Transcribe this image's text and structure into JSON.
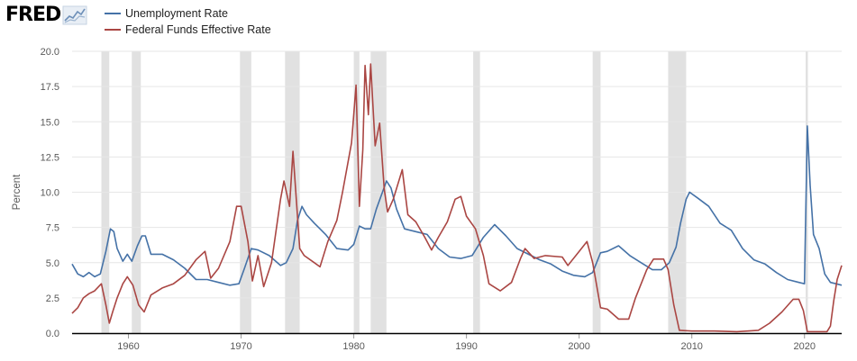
{
  "brand": {
    "logo_text": "FRED",
    "logo_icon": "chart-line-icon"
  },
  "chart_data": {
    "type": "line",
    "title": "",
    "xlabel": "",
    "ylabel": "Percent",
    "xlim": [
      1955,
      2023.3
    ],
    "ylim": [
      0,
      20
    ],
    "yticks": [
      0.0,
      2.5,
      5.0,
      7.5,
      10.0,
      12.5,
      15.0,
      17.5,
      20.0
    ],
    "ytick_labels": [
      "0.0",
      "2.5",
      "5.0",
      "7.5",
      "10.0",
      "12.5",
      "15.0",
      "17.5",
      "20.0"
    ],
    "xticks": [
      1960,
      1970,
      1980,
      1990,
      2000,
      2010,
      2020
    ],
    "xtick_labels": [
      "1960",
      "1970",
      "1980",
      "1990",
      "2000",
      "2010",
      "2020"
    ],
    "grid": {
      "horizontal": true,
      "vertical": false
    },
    "legend_position": "top-left",
    "recessions": [
      [
        1957.6,
        1958.3
      ],
      [
        1960.3,
        1961.1
      ],
      [
        1969.9,
        1970.9
      ],
      [
        1973.9,
        1975.2
      ],
      [
        1980.0,
        1980.5
      ],
      [
        1981.5,
        1982.9
      ],
      [
        1990.6,
        1991.2
      ],
      [
        2001.2,
        2001.9
      ],
      [
        2007.9,
        2009.5
      ],
      [
        2020.1,
        2020.3
      ]
    ],
    "series": [
      {
        "name": "Unemployment Rate",
        "color": "#4572a7",
        "points": [
          [
            1955.0,
            4.9
          ],
          [
            1955.5,
            4.2
          ],
          [
            1956.0,
            4.0
          ],
          [
            1956.5,
            4.3
          ],
          [
            1957.0,
            4.0
          ],
          [
            1957.5,
            4.2
          ],
          [
            1958.0,
            5.8
          ],
          [
            1958.4,
            7.4
          ],
          [
            1958.7,
            7.2
          ],
          [
            1959.0,
            6.0
          ],
          [
            1959.5,
            5.1
          ],
          [
            1959.9,
            5.6
          ],
          [
            1960.3,
            5.1
          ],
          [
            1960.8,
            6.2
          ],
          [
            1961.2,
            6.9
          ],
          [
            1961.5,
            6.9
          ],
          [
            1962.0,
            5.6
          ],
          [
            1963.0,
            5.6
          ],
          [
            1964.0,
            5.2
          ],
          [
            1965.0,
            4.6
          ],
          [
            1966.0,
            3.8
          ],
          [
            1967.0,
            3.8
          ],
          [
            1968.0,
            3.6
          ],
          [
            1969.0,
            3.4
          ],
          [
            1969.8,
            3.5
          ],
          [
            1970.3,
            4.6
          ],
          [
            1970.9,
            6.0
          ],
          [
            1971.5,
            5.9
          ],
          [
            1972.5,
            5.5
          ],
          [
            1973.5,
            4.8
          ],
          [
            1974.0,
            5.0
          ],
          [
            1974.6,
            6.0
          ],
          [
            1975.0,
            8.0
          ],
          [
            1975.4,
            9.0
          ],
          [
            1975.8,
            8.4
          ],
          [
            1976.5,
            7.8
          ],
          [
            1977.5,
            7.0
          ],
          [
            1978.5,
            6.0
          ],
          [
            1979.5,
            5.9
          ],
          [
            1980.0,
            6.3
          ],
          [
            1980.5,
            7.6
          ],
          [
            1981.0,
            7.4
          ],
          [
            1981.5,
            7.4
          ],
          [
            1982.0,
            8.8
          ],
          [
            1982.9,
            10.8
          ],
          [
            1983.3,
            10.3
          ],
          [
            1983.8,
            8.8
          ],
          [
            1984.5,
            7.4
          ],
          [
            1985.5,
            7.2
          ],
          [
            1986.5,
            7.0
          ],
          [
            1987.5,
            6.0
          ],
          [
            1988.5,
            5.4
          ],
          [
            1989.5,
            5.3
          ],
          [
            1990.5,
            5.5
          ],
          [
            1991.5,
            6.8
          ],
          [
            1992.5,
            7.7
          ],
          [
            1993.5,
            6.9
          ],
          [
            1994.5,
            6.0
          ],
          [
            1995.5,
            5.6
          ],
          [
            1996.5,
            5.2
          ],
          [
            1997.5,
            4.9
          ],
          [
            1998.5,
            4.4
          ],
          [
            1999.5,
            4.1
          ],
          [
            2000.5,
            4.0
          ],
          [
            2001.2,
            4.3
          ],
          [
            2001.9,
            5.7
          ],
          [
            2002.5,
            5.8
          ],
          [
            2003.5,
            6.2
          ],
          [
            2004.5,
            5.5
          ],
          [
            2005.5,
            5.0
          ],
          [
            2006.5,
            4.5
          ],
          [
            2007.3,
            4.5
          ],
          [
            2008.0,
            5.0
          ],
          [
            2008.6,
            6.1
          ],
          [
            2009.0,
            7.8
          ],
          [
            2009.5,
            9.5
          ],
          [
            2009.8,
            10.0
          ],
          [
            2010.5,
            9.6
          ],
          [
            2011.5,
            9.0
          ],
          [
            2012.5,
            7.8
          ],
          [
            2013.5,
            7.3
          ],
          [
            2014.5,
            6.0
          ],
          [
            2015.5,
            5.2
          ],
          [
            2016.5,
            4.9
          ],
          [
            2017.5,
            4.3
          ],
          [
            2018.5,
            3.8
          ],
          [
            2019.5,
            3.6
          ],
          [
            2020.0,
            3.5
          ],
          [
            2020.25,
            14.7
          ],
          [
            2020.5,
            10.5
          ],
          [
            2020.8,
            7.0
          ],
          [
            2021.3,
            6.0
          ],
          [
            2021.8,
            4.2
          ],
          [
            2022.3,
            3.6
          ],
          [
            2022.8,
            3.5
          ],
          [
            2023.3,
            3.4
          ]
        ]
      },
      {
        "name": "Federal Funds Effective Rate",
        "color": "#aa4643",
        "points": [
          [
            1955.0,
            1.4
          ],
          [
            1955.5,
            1.8
          ],
          [
            1956.0,
            2.5
          ],
          [
            1956.5,
            2.8
          ],
          [
            1957.0,
            3.0
          ],
          [
            1957.6,
            3.5
          ],
          [
            1958.0,
            2.0
          ],
          [
            1958.3,
            0.7
          ],
          [
            1958.6,
            1.5
          ],
          [
            1959.0,
            2.5
          ],
          [
            1959.5,
            3.5
          ],
          [
            1959.9,
            4.0
          ],
          [
            1960.4,
            3.4
          ],
          [
            1960.9,
            2.0
          ],
          [
            1961.4,
            1.5
          ],
          [
            1962.0,
            2.7
          ],
          [
            1963.0,
            3.2
          ],
          [
            1964.0,
            3.5
          ],
          [
            1965.0,
            4.1
          ],
          [
            1966.0,
            5.2
          ],
          [
            1966.8,
            5.8
          ],
          [
            1967.3,
            3.9
          ],
          [
            1968.0,
            4.6
          ],
          [
            1969.0,
            6.5
          ],
          [
            1969.6,
            9.0
          ],
          [
            1970.0,
            9.0
          ],
          [
            1970.6,
            6.5
          ],
          [
            1971.0,
            3.7
          ],
          [
            1971.5,
            5.5
          ],
          [
            1972.0,
            3.3
          ],
          [
            1972.7,
            5.0
          ],
          [
            1973.5,
            9.5
          ],
          [
            1973.8,
            10.8
          ],
          [
            1974.3,
            9.0
          ],
          [
            1974.6,
            12.9
          ],
          [
            1974.9,
            9.5
          ],
          [
            1975.2,
            6.0
          ],
          [
            1975.6,
            5.5
          ],
          [
            1976.5,
            5.0
          ],
          [
            1977.0,
            4.7
          ],
          [
            1977.7,
            6.5
          ],
          [
            1978.5,
            8.0
          ],
          [
            1979.0,
            10.0
          ],
          [
            1979.8,
            13.5
          ],
          [
            1980.2,
            17.6
          ],
          [
            1980.5,
            9.0
          ],
          [
            1980.8,
            13.0
          ],
          [
            1981.0,
            19.0
          ],
          [
            1981.3,
            15.5
          ],
          [
            1981.5,
            19.1
          ],
          [
            1981.9,
            13.3
          ],
          [
            1982.3,
            14.9
          ],
          [
            1982.7,
            10.2
          ],
          [
            1983.0,
            8.6
          ],
          [
            1983.5,
            9.5
          ],
          [
            1984.3,
            11.6
          ],
          [
            1984.8,
            8.4
          ],
          [
            1985.5,
            7.9
          ],
          [
            1986.3,
            6.8
          ],
          [
            1986.9,
            5.9
          ],
          [
            1987.5,
            6.8
          ],
          [
            1988.3,
            7.9
          ],
          [
            1989.0,
            9.5
          ],
          [
            1989.5,
            9.7
          ],
          [
            1990.0,
            8.3
          ],
          [
            1990.8,
            7.4
          ],
          [
            1991.5,
            5.5
          ],
          [
            1992.0,
            3.5
          ],
          [
            1993.0,
            3.0
          ],
          [
            1994.0,
            3.6
          ],
          [
            1994.8,
            5.3
          ],
          [
            1995.2,
            6.0
          ],
          [
            1996.0,
            5.3
          ],
          [
            1997.0,
            5.5
          ],
          [
            1998.5,
            5.4
          ],
          [
            1999.0,
            4.8
          ],
          [
            2000.0,
            5.8
          ],
          [
            2000.7,
            6.5
          ],
          [
            2001.2,
            5.0
          ],
          [
            2001.9,
            1.8
          ],
          [
            2002.5,
            1.7
          ],
          [
            2003.5,
            1.0
          ],
          [
            2004.4,
            1.0
          ],
          [
            2005.0,
            2.5
          ],
          [
            2006.0,
            4.5
          ],
          [
            2006.6,
            5.25
          ],
          [
            2007.5,
            5.25
          ],
          [
            2007.9,
            4.5
          ],
          [
            2008.4,
            2.0
          ],
          [
            2008.9,
            0.2
          ],
          [
            2010.0,
            0.15
          ],
          [
            2012.0,
            0.15
          ],
          [
            2014.0,
            0.1
          ],
          [
            2015.9,
            0.2
          ],
          [
            2016.9,
            0.7
          ],
          [
            2018.0,
            1.5
          ],
          [
            2019.0,
            2.4
          ],
          [
            2019.5,
            2.4
          ],
          [
            2019.9,
            1.6
          ],
          [
            2020.25,
            0.1
          ],
          [
            2021.0,
            0.1
          ],
          [
            2022.0,
            0.1
          ],
          [
            2022.3,
            0.5
          ],
          [
            2022.6,
            2.3
          ],
          [
            2022.9,
            3.8
          ],
          [
            2023.3,
            4.8
          ]
        ]
      }
    ]
  }
}
